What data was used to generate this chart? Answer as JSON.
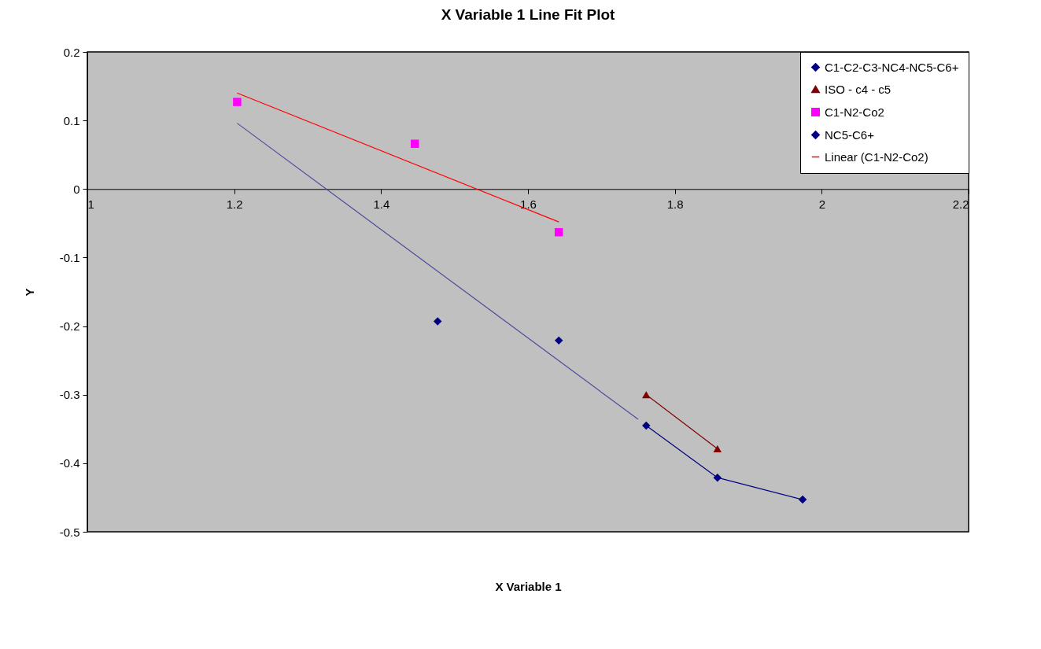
{
  "chart_data": {
    "type": "scatter",
    "title": "X Variable 1 Line Fit  Plot",
    "xlabel": "X Variable 1",
    "ylabel": "Y",
    "xlim": [
      1,
      2.2
    ],
    "xticks": [
      1,
      1.2,
      1.4,
      1.6,
      1.8,
      2,
      2.2
    ],
    "ylim": [
      -0.5,
      0.2
    ],
    "yticks": [
      -0.5,
      -0.4,
      -0.3,
      -0.2,
      -0.1,
      0,
      0.1,
      0.2
    ],
    "grid": false,
    "legend": "top right",
    "series": [
      {
        "name": "C1-C2-C3-NC4-NC5-C6+",
        "marker": "diamond",
        "color": "#000080",
        "x": [
          1.477,
          1.642
        ],
        "values": [
          -0.193,
          -0.221
        ]
      },
      {
        "name": "ISO - c4 - c5",
        "type": "line",
        "marker": "triangle",
        "color": "#800000",
        "x": [
          1.761,
          1.858
        ],
        "values": [
          -0.3,
          -0.379
        ]
      },
      {
        "name": "C1-N2-Co2",
        "marker": "square",
        "color": "#ff00ff",
        "x": [
          1.204,
          1.446,
          1.642
        ],
        "values": [
          0.127,
          0.066,
          -0.063
        ]
      },
      {
        "name": "NC5-C6+",
        "type": "line",
        "marker": "diamond",
        "color": "#000080",
        "x": [
          1.761,
          1.858,
          1.974
        ],
        "values": [
          -0.345,
          -0.421,
          -0.453
        ]
      },
      {
        "name": "Linear (C1-N2-Co2)",
        "type": "line",
        "marker": "none",
        "color": "#ff0000",
        "x": [
          1.204,
          1.642
        ],
        "values": [
          0.14,
          -0.048
        ]
      },
      {
        "type": "line",
        "marker": "none",
        "color": "#4b4b9b",
        "x": [
          1.204,
          1.75
        ],
        "values": [
          0.096,
          -0.336
        ]
      }
    ]
  }
}
